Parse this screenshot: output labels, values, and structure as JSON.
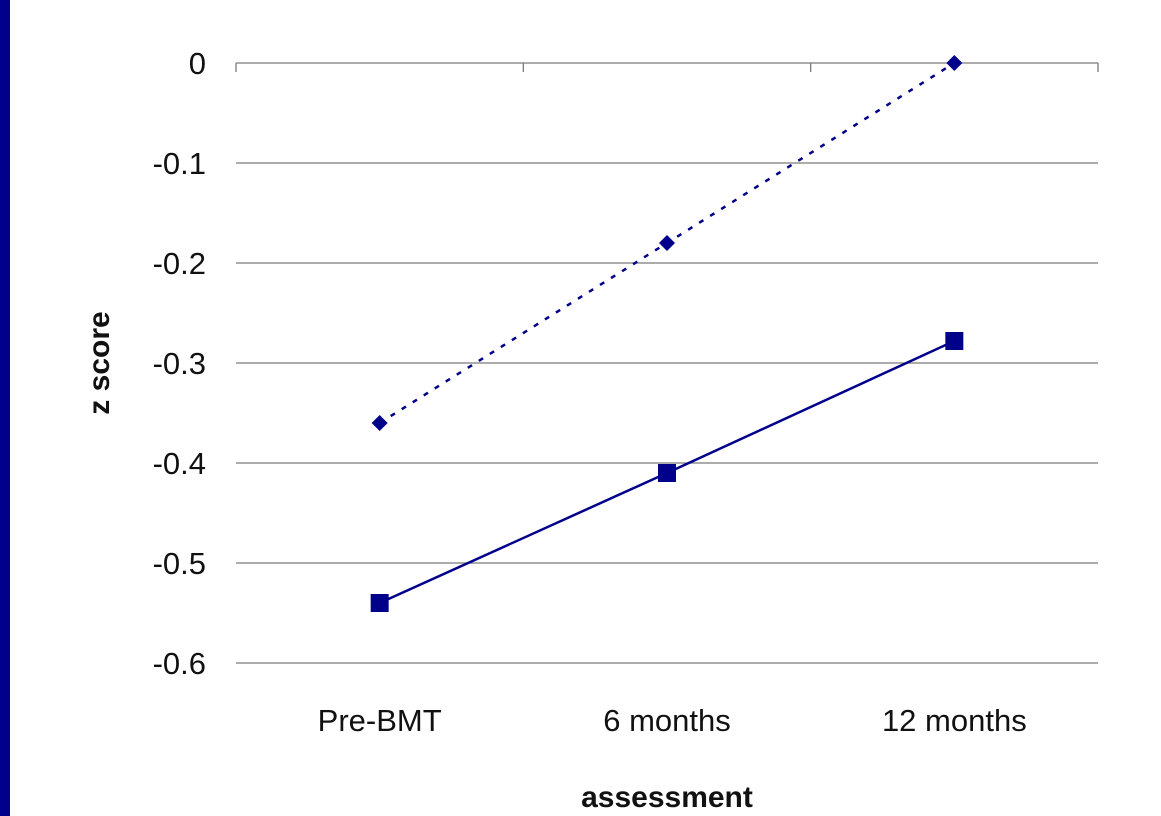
{
  "chart_data": {
    "type": "line",
    "title": "",
    "xlabel": "assessment",
    "ylabel": "z score",
    "categories": [
      "Pre-BMT",
      "6 months",
      "12 months"
    ],
    "ylim": [
      -0.6,
      0
    ],
    "yticks": [
      "0",
      "-0.1",
      "-0.2",
      "-0.3",
      "-0.4",
      "-0.5",
      "-0.6"
    ],
    "ytick_values": [
      0,
      -0.1,
      -0.2,
      -0.3,
      -0.4,
      -0.5,
      -0.6
    ],
    "grid": true,
    "legend": "none",
    "series": [
      {
        "values": [
          -0.36,
          -0.18,
          0.0
        ],
        "line_style": "dotted",
        "marker": "diamond",
        "color": "#00008b"
      },
      {
        "values": [
          -0.54,
          -0.41,
          -0.278
        ],
        "line_style": "solid",
        "marker": "square",
        "color": "#00008b"
      }
    ]
  }
}
